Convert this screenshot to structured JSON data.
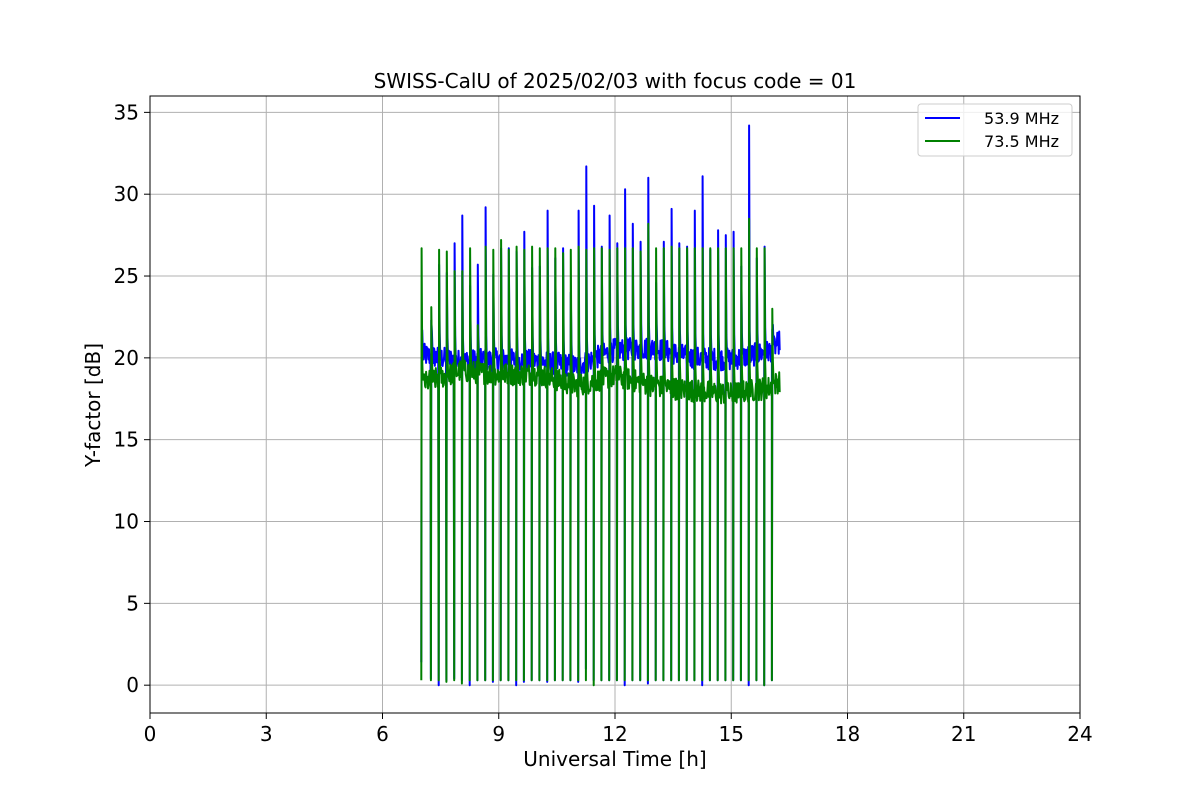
{
  "chart_data": {
    "type": "line",
    "title": "SWISS-CalU of 2025/02/03 with focus code = 01",
    "xlabel": "Universal Time [h]",
    "ylabel": "Y-factor [dB]",
    "xlim": [
      0,
      24
    ],
    "ylim": [
      -1.7,
      36
    ],
    "xticks": [
      0,
      3,
      6,
      9,
      12,
      15,
      18,
      21,
      24
    ],
    "yticks": [
      0,
      5,
      10,
      15,
      20,
      25,
      30,
      35
    ],
    "grid": true,
    "legend_position": "top-right",
    "spike_times": [
      7.0,
      7.25,
      7.45,
      7.65,
      7.85,
      8.05,
      8.25,
      8.45,
      8.65,
      8.85,
      9.05,
      9.25,
      9.45,
      9.65,
      9.85,
      10.05,
      10.25,
      10.45,
      10.65,
      10.85,
      11.05,
      11.25,
      11.45,
      11.65,
      11.85,
      12.05,
      12.25,
      12.45,
      12.65,
      12.85,
      13.05,
      13.25,
      13.45,
      13.65,
      13.85,
      14.05,
      14.25,
      14.45,
      14.65,
      14.85,
      15.05,
      15.25,
      15.45,
      15.65,
      15.85,
      16.05
    ],
    "series": [
      {
        "name": "53.9 MHz",
        "color": "#0000ff",
        "baseline": [
          [
            7.0,
            20.2
          ],
          [
            8.0,
            19.8
          ],
          [
            9.0,
            19.9
          ],
          [
            10.0,
            19.8
          ],
          [
            11.0,
            19.5
          ],
          [
            12.0,
            20.5
          ],
          [
            13.0,
            20.6
          ],
          [
            14.0,
            20.0
          ],
          [
            15.0,
            19.9
          ],
          [
            16.0,
            20.4
          ],
          [
            16.25,
            21.0
          ]
        ],
        "spike_peaks": [
          21.0,
          22.3,
          25.7,
          25.2,
          27.0,
          28.7,
          24.4,
          25.7,
          29.2,
          25.1,
          26.7,
          26.7,
          26.5,
          27.7,
          25.5,
          25.6,
          29.0,
          26.1,
          26.7,
          24.0,
          29.0,
          31.7,
          29.3,
          26.8,
          28.7,
          27.0,
          30.3,
          28.2,
          27.1,
          31.0,
          24.6,
          27.1,
          29.1,
          27.0,
          26.8,
          29.0,
          31.1,
          26.6,
          27.8,
          27.5,
          27.7,
          25.6,
          34.2,
          26.1,
          26.8,
          21.7
        ],
        "spike_mins": [
          1.4,
          0.4,
          0.0,
          0.3,
          0.4,
          0.3,
          0.0,
          0.3,
          0.3,
          0.2,
          0.3,
          0.3,
          0.0,
          0.2,
          0.3,
          0.3,
          0.2,
          0.3,
          0.3,
          0.3,
          0.2,
          1.0,
          0.3,
          0.3,
          0.3,
          0.3,
          0.0,
          0.3,
          0.3,
          0.1,
          0.3,
          0.3,
          0.3,
          0.3,
          0.3,
          0.3,
          0.0,
          0.3,
          0.3,
          0.3,
          0.3,
          0.3,
          0.0,
          0.3,
          0.0,
          0.3
        ]
      },
      {
        "name": "73.5 MHz",
        "color": "#008000",
        "baseline": [
          [
            7.0,
            18.4
          ],
          [
            8.0,
            19.2
          ],
          [
            9.0,
            19.0
          ],
          [
            10.0,
            19.0
          ],
          [
            11.0,
            18.3
          ],
          [
            12.0,
            18.9
          ],
          [
            13.0,
            18.3
          ],
          [
            14.0,
            18.0
          ],
          [
            15.0,
            17.8
          ],
          [
            16.0,
            18.2
          ],
          [
            16.25,
            18.6
          ]
        ],
        "spike_peaks": [
          26.7,
          23.1,
          26.6,
          26.5,
          25.3,
          25.3,
          26.7,
          22.0,
          26.8,
          26.6,
          27.2,
          26.6,
          26.8,
          26.6,
          26.8,
          26.7,
          26.7,
          26.7,
          26.4,
          26.6,
          26.8,
          26.6,
          26.7,
          26.7,
          26.6,
          26.7,
          26.7,
          26.7,
          26.5,
          28.2,
          26.7,
          26.7,
          26.8,
          26.7,
          26.7,
          26.7,
          26.7,
          26.7,
          26.7,
          26.7,
          26.7,
          26.7,
          28.5,
          26.7,
          26.7,
          23.0
        ],
        "spike_mins": [
          0.3,
          0.3,
          0.3,
          0.2,
          0.3,
          0.1,
          0.3,
          0.3,
          0.3,
          0.3,
          0.3,
          0.3,
          0.3,
          0.3,
          0.3,
          0.3,
          0.3,
          0.3,
          0.3,
          0.3,
          0.3,
          0.3,
          0.0,
          0.3,
          0.3,
          0.3,
          0.3,
          0.3,
          0.3,
          0.3,
          0.3,
          0.3,
          0.3,
          0.3,
          0.3,
          0.3,
          0.3,
          0.3,
          0.3,
          0.3,
          0.3,
          0.3,
          0.3,
          0.3,
          0.0,
          0.3
        ]
      }
    ]
  }
}
